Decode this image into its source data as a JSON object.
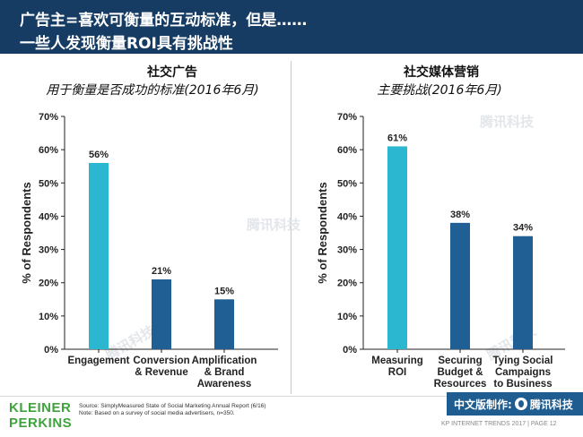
{
  "header": {
    "line1": "广告主=喜欢可衡量的互动标准，但是……",
    "line2": "一些人发现衡量ROI具有挑战性"
  },
  "left_panel": {
    "title": "社交广告",
    "subtitle": "用于衡量是否成功的标准(2016年6月)"
  },
  "right_panel": {
    "title": "社交媒体营销",
    "subtitle": "主要挑战(2016年6月)"
  },
  "chart_data": [
    {
      "type": "bar",
      "categories": [
        [
          "Engagement"
        ],
        [
          "Conversion",
          "& Revenue"
        ],
        [
          "Amplification",
          "& Brand",
          "Awareness"
        ]
      ],
      "values": [
        56,
        21,
        15
      ],
      "value_labels": [
        "56%",
        "21%",
        "15%"
      ],
      "bar_colors": [
        "#2ab7cf",
        "#1f5f94",
        "#1f5f94"
      ],
      "ylabel": "% of Respondents",
      "ylim": [
        0,
        70
      ],
      "yticks": [
        "0%",
        "10%",
        "20%",
        "30%",
        "40%",
        "50%",
        "60%",
        "70%"
      ],
      "grid": false
    },
    {
      "type": "bar",
      "categories": [
        [
          "Measuring",
          "ROI"
        ],
        [
          "Securing",
          "Budget &",
          "Resources"
        ],
        [
          "Tying Social",
          "Campaigns",
          "to Business"
        ]
      ],
      "values": [
        61,
        38,
        34
      ],
      "value_labels": [
        "61%",
        "38%",
        "34%"
      ],
      "bar_colors": [
        "#2ab7cf",
        "#1f5f94",
        "#1f5f94"
      ],
      "ylabel": "% of Respondents",
      "ylim": [
        0,
        70
      ],
      "yticks": [
        "0%",
        "10%",
        "20%",
        "30%",
        "40%",
        "50%",
        "60%",
        "70%"
      ],
      "grid": false
    }
  ],
  "footer": {
    "brand_line1": "KLEINER",
    "brand_line2": "PERKINS",
    "source": "Source: SimplyMeasured State of Social Marketing Annual Report (6/16)",
    "note": "Note: Based on a survey of social media advertisers, n=350.",
    "credit_prefix": "中文版制作:",
    "credit_brand": "腾讯科技",
    "page_label": "KP INTERNET TRENDS 2017  |  PAGE 12"
  },
  "watermark_text": "腾讯科技",
  "colors": {
    "header_bg": "#173c63",
    "accent_teal": "#2ab7cf",
    "bar_blue": "#1f5f94",
    "brand_green": "#3fa33d"
  }
}
